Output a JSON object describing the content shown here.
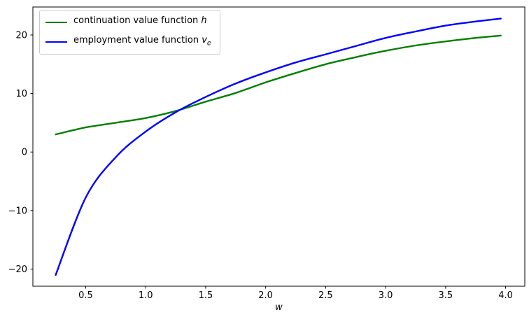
{
  "figure": {
    "background": "#ffffff",
    "axes_edge_color": "#000000",
    "tick_color": "#000000",
    "text_color": "#000000"
  },
  "chart_data": {
    "type": "line",
    "title": "",
    "xlabel": "w",
    "ylabel": "",
    "grid": false,
    "legend_position": "upper left",
    "legend_edge_color": "#cccccc",
    "xlim": [
      0.06,
      4.16
    ],
    "ylim": [
      -22.93,
      24.78
    ],
    "x_ticks": [
      0.5,
      1.0,
      1.5,
      2.0,
      2.5,
      3.0,
      3.5,
      4.0
    ],
    "x_tick_labels": [
      "0.5",
      "1.0",
      "1.5",
      "2.0",
      "2.5",
      "3.0",
      "3.5",
      "4.0"
    ],
    "y_ticks": [
      -20,
      -10,
      0,
      10,
      20
    ],
    "y_tick_labels": [
      "−20",
      "−10",
      "0",
      "10",
      "20"
    ],
    "x": [
      0.25,
      0.5,
      0.75,
      1.0,
      1.25,
      1.5,
      1.75,
      2.0,
      2.25,
      2.5,
      2.75,
      3.0,
      3.25,
      3.5,
      3.75,
      3.96
    ],
    "series": [
      {
        "name": "continuation value function h",
        "label_text": "continuation value function ",
        "label_math": "h",
        "label_sub": "",
        "color": "#008000",
        "line_width": 2.4,
        "values": [
          3.0,
          4.2,
          5.0,
          5.8,
          7.0,
          8.6,
          10.1,
          11.9,
          13.5,
          15.0,
          16.2,
          17.3,
          18.2,
          18.9,
          19.5,
          19.9
        ]
      },
      {
        "name": "employment value function v_e",
        "label_text": "employment value function ",
        "label_math": "v",
        "label_sub": "e",
        "color": "#0000ff",
        "line_width": 2.4,
        "values": [
          -21.0,
          -7.8,
          -0.9,
          3.5,
          6.8,
          9.4,
          11.7,
          13.6,
          15.3,
          16.7,
          18.1,
          19.5,
          20.6,
          21.6,
          22.3,
          22.8
        ]
      }
    ],
    "crossing_point": {
      "w": 1.37,
      "value": 7.9
    }
  }
}
